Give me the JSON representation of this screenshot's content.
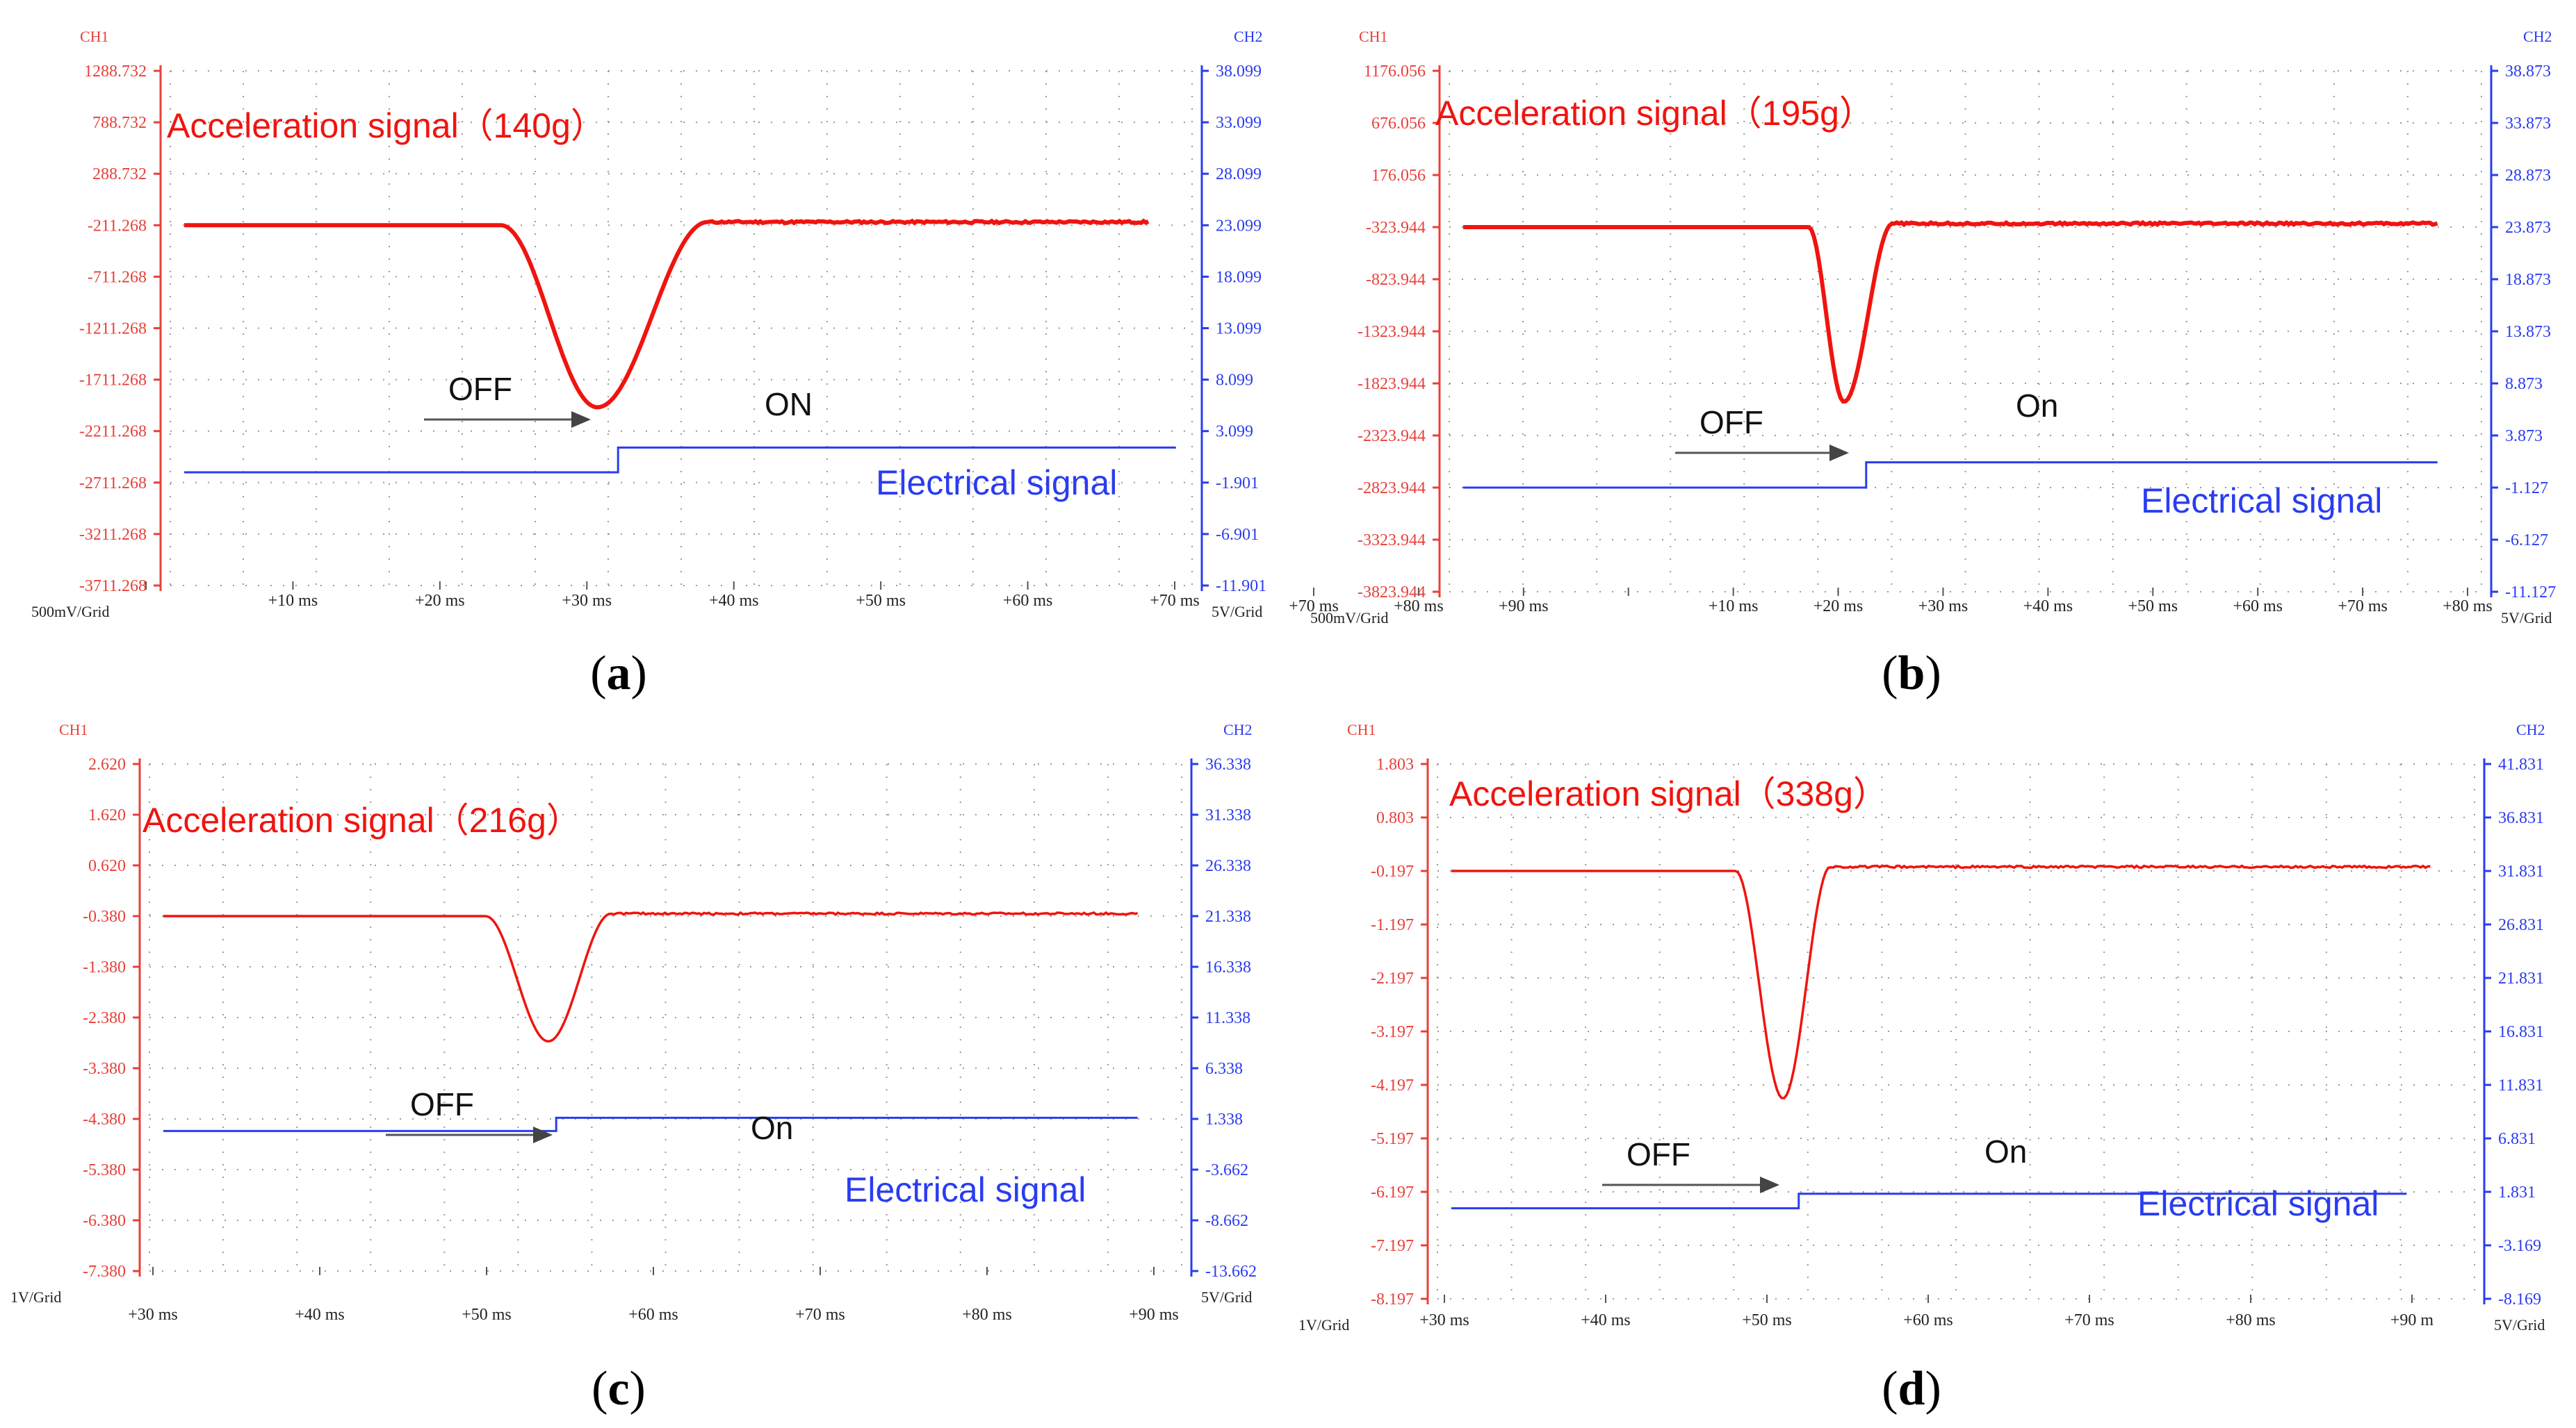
{
  "chart_data": [
    {
      "type": "line",
      "panel": "(a)",
      "ch1_title": "CH1",
      "ch2_title": "CH2",
      "ch1_scale": "500mV/Grid",
      "ch2_scale": "5V/Grid",
      "ch1_ticks": [
        "1288.732",
        "788.732",
        "288.732",
        "-211.268",
        "-711.268",
        "-1211.268",
        "-1711.268",
        "-2211.268",
        "-2711.268",
        "-3211.268",
        "-3711.268"
      ],
      "ch2_ticks": [
        "38.099",
        "33.099",
        "28.099",
        "23.099",
        "18.099",
        "13.099",
        "8.099",
        "3.099",
        "-1.901",
        "-6.901",
        "-11.901"
      ],
      "x_ticks": [
        "",
        "+10 ms",
        "+20 ms",
        "+30 ms",
        "+40 ms",
        "+50 ms",
        "+60 ms",
        "+70 ms"
      ],
      "acceleration": {
        "label": "Acceleration signal（140g）",
        "baseline": -211.268,
        "peak": -1980,
        "peak_t": 3.0,
        "start_t": 2.3,
        "end_t": 3.8,
        "after": -180,
        "t_start": 0.0,
        "t_end": 7.0
      },
      "electrical": {
        "label": "Electrical signal",
        "off_label": "OFF",
        "on_label": "ON",
        "low": -0.9,
        "high": 1.5,
        "switch_t": 2.95,
        "t_start": -0.2,
        "t_end": 7.0
      }
    },
    {
      "type": "line",
      "panel": "(b)",
      "ch1_title": "CH1",
      "ch2_title": "CH2",
      "ch1_scale": "500mV/Grid",
      "ch2_scale": "5V/Grid",
      "ch1_ticks": [
        "1176.056",
        "676.056",
        "176.056",
        "-323.944",
        "-823.944",
        "-1323.944",
        "-1823.944",
        "-2323.944",
        "-2823.944",
        "-3323.944",
        "-3823.944"
      ],
      "ch2_ticks": [
        "38.873",
        "33.873",
        "28.873",
        "23.873",
        "18.873",
        "13.873",
        "8.873",
        "3.873",
        "-1.127",
        "-6.127",
        "-11.127"
      ],
      "x_ticks": [
        "+70 ms",
        "+80 ms",
        "+90 ms",
        "",
        "+10 ms",
        "+20 ms",
        "+30 ms",
        "+40 ms",
        "+50 ms",
        "+60 ms",
        "+70 ms",
        "+80 ms"
      ],
      "acceleration": {
        "label": "Acceleration signal（195g）",
        "baseline": -323.944,
        "peak": -2000,
        "peak_t": 4.3,
        "start_t": 3.9,
        "end_t": 4.85,
        "after": -290,
        "t_start": 0.0,
        "t_end": 11.0
      },
      "electrical": {
        "label": "Electrical signal",
        "off_label": "OFF",
        "on_label": "On",
        "low": -1.127,
        "high": 1.3,
        "switch_t": 4.55,
        "t_start": 0.0,
        "t_end": 11.0
      }
    },
    {
      "type": "line",
      "panel": "(c)",
      "ch1_title": "CH1",
      "ch2_title": "CH2",
      "ch1_scale": "1V/Grid",
      "ch2_scale": "5V/Grid",
      "ch1_ticks": [
        "2.620",
        "1.620",
        "0.620",
        "-0.380",
        "-1.380",
        "-2.380",
        "-3.380",
        "-4.380",
        "-5.380",
        "-6.380",
        "-7.380"
      ],
      "ch2_ticks": [
        "36.338",
        "31.338",
        "26.338",
        "21.338",
        "16.338",
        "11.338",
        "6.338",
        "1.338",
        "-3.662",
        "-8.662",
        "-13.662"
      ],
      "x_ticks": [
        "+30 ms",
        "+40 ms",
        "+50 ms",
        "+60 ms",
        "+70 ms",
        "+80 ms",
        "+90 ms"
      ],
      "acceleration": {
        "label": "Acceleration signal（216g）",
        "baseline": -0.38,
        "peak": -2.85,
        "peak_t": 2.45,
        "start_t": 2.05,
        "end_t": 2.85,
        "after": -0.33,
        "t_start": 0.0,
        "t_end": 6.2
      },
      "electrical": {
        "label": "Electrical signal",
        "off_label": "OFF",
        "on_label": "On",
        "low": 0.15,
        "high": 1.45,
        "switch_t": 2.5,
        "t_start": 0.0,
        "t_end": 6.2
      }
    },
    {
      "type": "line",
      "panel": "(d)",
      "ch1_title": "CH1",
      "ch2_title": "CH2",
      "ch1_scale": "1V/Grid",
      "ch2_scale": "5V/Grid",
      "ch1_ticks": [
        "1.803",
        "0.803",
        "-0.197",
        "-1.197",
        "-2.197",
        "-3.197",
        "-4.197",
        "-5.197",
        "-6.197",
        "-7.197",
        "-8.197"
      ],
      "ch2_ticks": [
        "41.831",
        "36.831",
        "31.831",
        "26.831",
        "21.831",
        "16.831",
        "11.831",
        "6.831",
        "1.831",
        "-3.169",
        "-8.169"
      ],
      "x_ticks": [
        "+30 ms",
        "+40 ms",
        "+50 ms",
        "+60 ms",
        "+70 ms",
        "+80 ms",
        "+90 m"
      ],
      "acceleration": {
        "label": "Acceleration signal（338g）",
        "baseline": -0.197,
        "peak": -4.45,
        "peak_t": 1.9,
        "start_t": 1.6,
        "end_t": 2.2,
        "after": -0.12,
        "t_start": -0.2,
        "t_end": 6.0
      },
      "electrical": {
        "label": "Electrical signal",
        "off_label": "OFF",
        "on_label": "On",
        "low": 0.3,
        "high": 1.65,
        "switch_t": 2.0,
        "t_start": -0.2,
        "t_end": 5.85
      }
    }
  ],
  "captions": [
    "a",
    "b",
    "c",
    "d"
  ]
}
